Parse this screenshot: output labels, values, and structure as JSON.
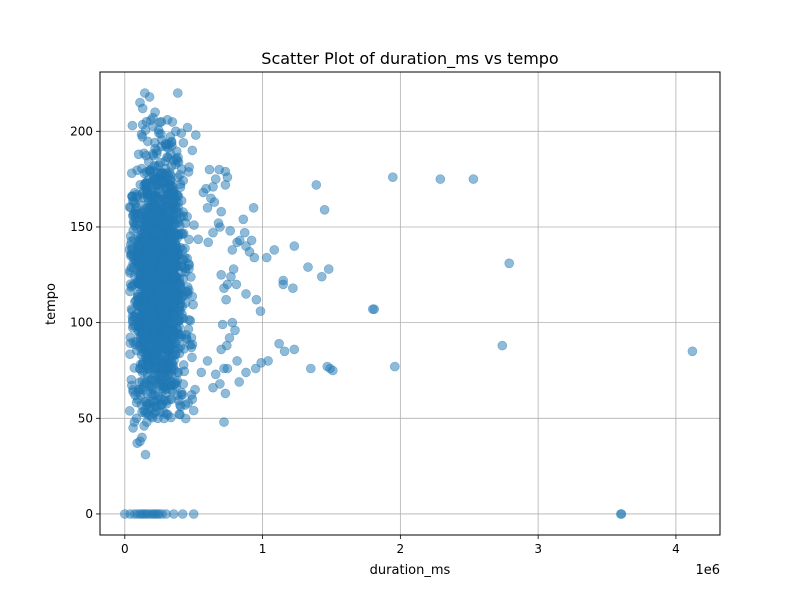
{
  "chart_data": {
    "type": "scatter",
    "title": "Scatter Plot of duration_ms vs tempo",
    "xlabel": "duration_ms",
    "ylabel": "tempo",
    "x_offset_label": "1e6",
    "xlim": [
      -180000,
      4320000
    ],
    "ylim": [
      -11,
      231
    ],
    "x_tick_values": [
      0,
      1000000,
      2000000,
      3000000,
      4000000
    ],
    "x_tick_labels": [
      "0",
      "1",
      "2",
      "3",
      "4"
    ],
    "y_tick_values": [
      0,
      50,
      100,
      150,
      200
    ],
    "y_tick_labels": [
      "0",
      "50",
      "100",
      "150",
      "200"
    ],
    "grid": true,
    "marker_color": "#1f77b4",
    "marker_alpha": 0.5,
    "points": [
      [
        145000,
        220
      ],
      [
        180000,
        218
      ],
      [
        385000,
        220
      ],
      [
        110000,
        215
      ],
      [
        130000,
        212
      ],
      [
        220000,
        210
      ],
      [
        310000,
        206
      ],
      [
        265000,
        205
      ],
      [
        455000,
        202
      ],
      [
        370000,
        200
      ],
      [
        410000,
        199
      ],
      [
        55000,
        203
      ],
      [
        515000,
        198
      ],
      [
        100000,
        188
      ],
      [
        300000,
        193
      ],
      [
        425000,
        194
      ],
      [
        490000,
        190
      ],
      [
        615000,
        180
      ],
      [
        685000,
        180
      ],
      [
        730000,
        179
      ],
      [
        745000,
        176
      ],
      [
        660000,
        175
      ],
      [
        640000,
        171
      ],
      [
        730000,
        172
      ],
      [
        590000,
        170
      ],
      [
        570000,
        168
      ],
      [
        625000,
        165
      ],
      [
        650000,
        163
      ],
      [
        600000,
        160
      ],
      [
        700000,
        158
      ],
      [
        680000,
        152
      ],
      [
        690000,
        150
      ],
      [
        765000,
        148
      ],
      [
        640000,
        147
      ],
      [
        605000,
        142
      ],
      [
        860000,
        154
      ],
      [
        870000,
        147
      ],
      [
        835000,
        143
      ],
      [
        815000,
        142
      ],
      [
        880000,
        140
      ],
      [
        935000,
        160
      ],
      [
        920000,
        143
      ],
      [
        905000,
        137
      ],
      [
        940000,
        134
      ],
      [
        1030000,
        134
      ],
      [
        1085000,
        138
      ],
      [
        1230000,
        140
      ],
      [
        780000,
        138
      ],
      [
        790000,
        128
      ],
      [
        770000,
        124
      ],
      [
        745000,
        120
      ],
      [
        720000,
        118
      ],
      [
        700000,
        125
      ],
      [
        735000,
        112
      ],
      [
        810000,
        120
      ],
      [
        880000,
        115
      ],
      [
        955000,
        112
      ],
      [
        985000,
        106
      ],
      [
        1150000,
        122
      ],
      [
        1150000,
        120
      ],
      [
        1220000,
        118
      ],
      [
        1330000,
        129
      ],
      [
        1430000,
        124
      ],
      [
        1480000,
        128
      ],
      [
        1390000,
        172
      ],
      [
        1450000,
        159
      ],
      [
        1945000,
        176
      ],
      [
        2290000,
        175
      ],
      [
        2530000,
        175
      ],
      [
        2790000,
        131
      ],
      [
        1810000,
        107
      ],
      [
        2740000,
        88
      ],
      [
        4120000,
        85
      ],
      [
        1960000,
        77
      ],
      [
        1470000,
        77
      ],
      [
        1490000,
        76
      ],
      [
        1510000,
        75
      ],
      [
        1350000,
        76
      ],
      [
        1230000,
        86
      ],
      [
        1160000,
        85
      ],
      [
        1120000,
        89
      ],
      [
        1040000,
        80
      ],
      [
        990000,
        79
      ],
      [
        950000,
        76
      ],
      [
        880000,
        74
      ],
      [
        815000,
        80
      ],
      [
        830000,
        69
      ],
      [
        745000,
        76
      ],
      [
        720000,
        76
      ],
      [
        730000,
        63
      ],
      [
        690000,
        68
      ],
      [
        640000,
        66
      ],
      [
        660000,
        73
      ],
      [
        710000,
        99
      ],
      [
        780000,
        100
      ],
      [
        800000,
        96
      ],
      [
        760000,
        92
      ],
      [
        740000,
        88
      ],
      [
        700000,
        86
      ],
      [
        600000,
        80
      ],
      [
        555000,
        74
      ],
      [
        510000,
        65
      ],
      [
        490000,
        60
      ],
      [
        460000,
        58
      ],
      [
        500000,
        54
      ],
      [
        440000,
        57
      ],
      [
        380000,
        62
      ],
      [
        400000,
        57
      ],
      [
        340000,
        60
      ],
      [
        300000,
        63
      ],
      [
        260000,
        60
      ],
      [
        230000,
        56
      ],
      [
        205000,
        59
      ],
      [
        180000,
        55
      ],
      [
        160000,
        53
      ],
      [
        140000,
        54
      ],
      [
        120000,
        57
      ],
      [
        95000,
        60
      ],
      [
        75000,
        62
      ],
      [
        60000,
        65
      ],
      [
        85000,
        50
      ],
      [
        70000,
        48
      ],
      [
        60000,
        45
      ],
      [
        160000,
        48
      ],
      [
        240000,
        50
      ],
      [
        140000,
        46
      ],
      [
        125000,
        40
      ],
      [
        110000,
        38
      ],
      [
        90000,
        37
      ],
      [
        150000,
        31
      ],
      [
        720000,
        48
      ],
      [
        1800000,
        107
      ],
      [
        0,
        0
      ],
      [
        40000,
        0
      ],
      [
        70000,
        0
      ],
      [
        90000,
        0
      ],
      [
        110000,
        0
      ],
      [
        125000,
        0
      ],
      [
        140000,
        0
      ],
      [
        155000,
        0
      ],
      [
        170000,
        0
      ],
      [
        190000,
        0
      ],
      [
        205000,
        0
      ],
      [
        220000,
        0
      ],
      [
        235000,
        0
      ],
      [
        250000,
        0
      ],
      [
        270000,
        0
      ],
      [
        300000,
        0
      ],
      [
        355000,
        0
      ],
      [
        420000,
        0
      ],
      [
        500000,
        0
      ],
      [
        3600000,
        0
      ],
      [
        3605000,
        0
      ]
    ],
    "dense_cluster": {
      "x_range": [
        30000,
        620000
      ],
      "x_center": 240000,
      "x_spread": 90000,
      "y_mean": 122,
      "y_spread": 30,
      "y_range": [
        48,
        208
      ],
      "count": 1900
    }
  }
}
